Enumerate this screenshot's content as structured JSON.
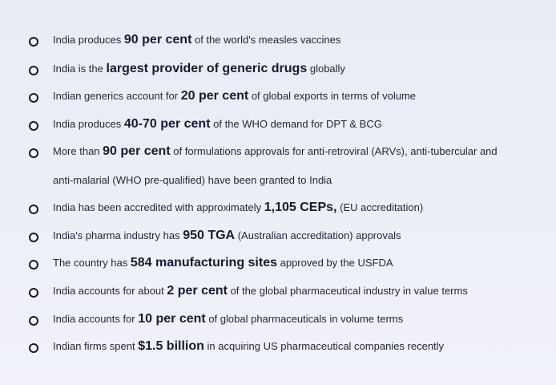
{
  "facts": [
    {
      "pre": "India produces ",
      "highlight": "90 per cent",
      "post": " of the world's measles vaccines"
    },
    {
      "pre": "India is the ",
      "highlight": "largest provider of generic drugs",
      "post": " globally"
    },
    {
      "pre": "Indian generics account for ",
      "highlight": "20 per cent",
      "post": " of global exports in terms of volume"
    },
    {
      "pre": "India produces ",
      "highlight": "40-70 per cent",
      "post": " of the WHO demand for DPT & BCG"
    },
    {
      "pre": "More than ",
      "highlight": "90 per cent",
      "post": " of formulations approvals for anti-retroviral (ARVs), anti-tubercular and",
      "continuation": "anti-malarial (WHO pre-qualified) have been granted to India"
    },
    {
      "pre": "India has been accredited with approximately ",
      "highlight": "1,105 CEPs,",
      "post": " (EU accreditation)"
    },
    {
      "pre": "India's pharma industry has ",
      "highlight": "950 TGA",
      "post": " (Australian accreditation) approvals"
    },
    {
      "pre": "The country has ",
      "highlight": "584 manufacturing sites",
      "post": " approved by the USFDA"
    },
    {
      "pre": "India accounts for about ",
      "highlight": "2 per cent",
      "post": " of the global pharmaceutical industry in value terms"
    },
    {
      "pre": "India accounts for ",
      "highlight": "10 per cent",
      "post": " of global pharmaceuticals in volume terms"
    },
    {
      "pre": "Indian firms spent ",
      "highlight": "$1.5 billion",
      "post": " in acquiring US pharmaceutical companies recently"
    }
  ]
}
